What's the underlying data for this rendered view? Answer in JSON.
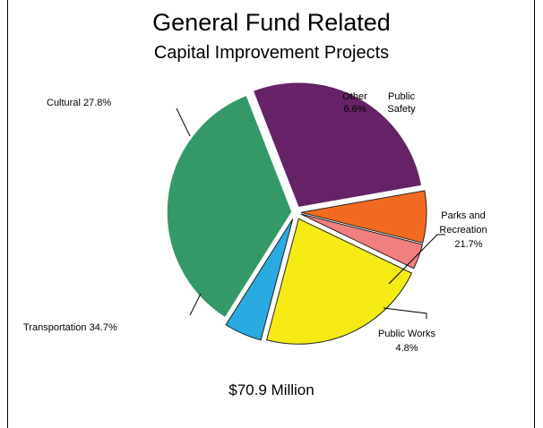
{
  "chart_data": {
    "type": "pie",
    "title": "General Fund Related",
    "subtitle": "Capital Improvement Projects",
    "total_label": "$70.9 Million",
    "slices": [
      {
        "key": "other",
        "label_lines": [
          "Other",
          "6.6%"
        ],
        "value": 6.6,
        "color": "#f26a21"
      },
      {
        "key": "public-safety",
        "label_lines": [
          "Public",
          "Safety"
        ],
        "value": 3.2,
        "color": "#f08080"
      },
      {
        "key": "parks",
        "label_lines": [
          "Parks and",
          "Recreation",
          "21.7%"
        ],
        "value": 21.7,
        "color": "#f5ea14"
      },
      {
        "key": "public-works",
        "label_lines": [
          "Public Works",
          "4.8%"
        ],
        "value": 4.8,
        "color": "#29abe2"
      },
      {
        "key": "transportation",
        "label_lines": [
          "Transportation 34.7%"
        ],
        "value": 34.7,
        "color": "#339966"
      },
      {
        "key": "cultural",
        "label_lines": [
          "Cultural 27.8%"
        ],
        "value": 27.8,
        "color": "#662266"
      }
    ]
  }
}
